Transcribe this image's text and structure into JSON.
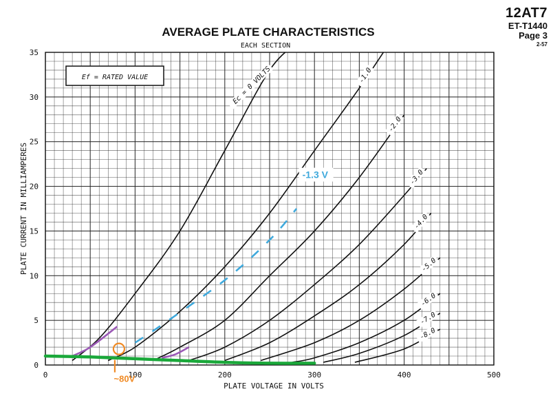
{
  "header": {
    "tube": "12AT7",
    "code": "ET-T1440",
    "page": "Page 3",
    "date": "2-57"
  },
  "chart_data": {
    "type": "line",
    "title": "AVERAGE PLATE CHARACTERISTICS",
    "subtitle": "EACH SECTION",
    "xlabel": "PLATE VOLTAGE IN VOLTS",
    "ylabel": "PLATE CURRENT IN MILLIAMPERES",
    "xlim": [
      0,
      500
    ],
    "ylim": [
      0,
      35
    ],
    "xticks": [
      0,
      100,
      200,
      300,
      400,
      500
    ],
    "yticks": [
      0,
      5,
      10,
      15,
      20,
      25,
      30,
      35
    ],
    "grid": true,
    "condition_box": "Ef = RATED VALUE",
    "series": [
      {
        "name": "Ec = 0 VOLTS",
        "label": "Ec = 0 VOLTS",
        "x": [
          30,
          60,
          100,
          150,
          200,
          250,
          280
        ],
        "y": [
          0.5,
          3,
          8,
          15,
          24,
          33,
          36
        ]
      },
      {
        "name": "-1.0",
        "label": "-1.0",
        "x": [
          70,
          100,
          150,
          200,
          250,
          300,
          350,
          390
        ],
        "y": [
          0.5,
          2,
          6,
          11,
          17,
          24,
          31,
          37
        ]
      },
      {
        "name": "-2.0",
        "label": "-2.0",
        "x": [
          120,
          150,
          200,
          250,
          300,
          350,
          400
        ],
        "y": [
          0.5,
          2,
          5,
          10,
          15,
          21,
          28
        ]
      },
      {
        "name": "-3.0",
        "label": "-3.0",
        "x": [
          160,
          200,
          250,
          300,
          350,
          400,
          425
        ],
        "y": [
          0.5,
          2,
          5,
          9,
          13.5,
          19,
          22
        ]
      },
      {
        "name": "-4.0",
        "label": "-4.0",
        "x": [
          200,
          250,
          300,
          350,
          400,
          430
        ],
        "y": [
          0.5,
          2.5,
          5.5,
          9,
          13.5,
          17
        ]
      },
      {
        "name": "-5.0",
        "label": "-5.0",
        "x": [
          240,
          300,
          350,
          400,
          440
        ],
        "y": [
          0.5,
          2.5,
          5,
          8.5,
          12
        ]
      },
      {
        "name": "-6.0",
        "label": "-6.0",
        "x": [
          275,
          300,
          350,
          400,
          440
        ],
        "y": [
          0.3,
          0.8,
          2.5,
          5,
          8
        ]
      },
      {
        "name": "-7.0",
        "label": "-7.0",
        "x": [
          310,
          350,
          400,
          440
        ],
        "y": [
          0.3,
          1.3,
          3.3,
          5.8
        ]
      },
      {
        "name": "-8.0",
        "label": "-8.0",
        "x": [
          345,
          400,
          440
        ],
        "y": [
          0.3,
          1.8,
          4
        ]
      }
    ],
    "overlays": {
      "load_line": {
        "color": "#3fa9dc",
        "x": [
          100,
          130,
          200,
          250,
          280
        ],
        "y": [
          2.5,
          4.5,
          9.5,
          14,
          17.5
        ]
      },
      "load_line_label": {
        "text": "-1.3 V",
        "color": "#3fa9dc",
        "x": 285,
        "y": 21
      },
      "purple_segments": {
        "color": "#9b59b6",
        "segments": [
          {
            "x": [
              30,
              50,
              80
            ],
            "y": [
              1,
              2,
              4.3
            ]
          },
          {
            "x": [
              130,
              145,
              160
            ],
            "y": [
              0.8,
              1.2,
              2
            ]
          }
        ]
      },
      "green_line": {
        "color": "#1aa83a",
        "x": [
          0,
          50,
          100,
          150,
          200,
          250,
          300
        ],
        "y": [
          1,
          0.9,
          0.7,
          0.5,
          0.3,
          0.2,
          0.2
        ]
      },
      "marker": {
        "color": "#f08a24",
        "x": 82,
        "y": 1.8,
        "label": "~80V"
      }
    }
  }
}
